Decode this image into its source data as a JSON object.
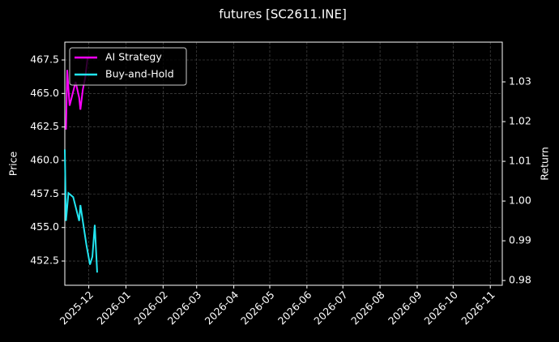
{
  "chart_data": {
    "type": "line",
    "title": "futures [SC2611.INE]",
    "ylabel": "Price",
    "y2label": "Return",
    "xlim": [
      "2025-11-11",
      "2026-11-11"
    ],
    "xticks": [
      {
        "value": "2025-12-01",
        "label": "2025-12"
      },
      {
        "value": "2026-01-01",
        "label": "2026-01"
      },
      {
        "value": "2026-02-01",
        "label": "2026-02"
      },
      {
        "value": "2026-03-01",
        "label": "2026-03"
      },
      {
        "value": "2026-04-01",
        "label": "2026-04"
      },
      {
        "value": "2026-05-01",
        "label": "2026-05"
      },
      {
        "value": "2026-06-01",
        "label": "2026-06"
      },
      {
        "value": "2026-07-01",
        "label": "2026-07"
      },
      {
        "value": "2026-08-01",
        "label": "2026-08"
      },
      {
        "value": "2026-09-01",
        "label": "2026-09"
      },
      {
        "value": "2026-10-01",
        "label": "2026-10"
      },
      {
        "value": "2026-11-01",
        "label": "2026-11"
      }
    ],
    "ylim": [
      450.69,
      468.83
    ],
    "yticks": [
      {
        "value": 452.5,
        "label": "452.5"
      },
      {
        "value": 455,
        "label": "455.0"
      },
      {
        "value": 457.5,
        "label": "457.5"
      },
      {
        "value": 460,
        "label": "460.0"
      },
      {
        "value": 462.5,
        "label": "462.5"
      },
      {
        "value": 465,
        "label": "465.0"
      },
      {
        "value": 467.5,
        "label": "467.5"
      }
    ],
    "y2lim": [
      0.9788,
      1.04
    ],
    "y2ticks": [
      {
        "value": 0.98,
        "label": "0.98"
      },
      {
        "value": 0.99,
        "label": "0.99"
      },
      {
        "value": 1,
        "label": "1.00"
      },
      {
        "value": 1.01,
        "label": "1.01"
      },
      {
        "value": 1.02,
        "label": "1.02"
      },
      {
        "value": 1.03,
        "label": "1.03"
      }
    ],
    "grid": true,
    "legend": "upper left",
    "series": [
      {
        "name": "AI Strategy",
        "color": "#ff00ff",
        "axis": "y2",
        "x": [
          "2025-11-12",
          "2025-11-13",
          "2025-11-15",
          "2025-11-20",
          "2025-11-23",
          "2025-11-24",
          "2025-11-26",
          "2025-11-28",
          "2025-11-30"
        ],
        "values": [
          1.018,
          1.033,
          1.024,
          1.03,
          1.026,
          1.023,
          1.028,
          1.031,
          1.036
        ]
      },
      {
        "name": "Buy-and-Hold",
        "color": "#22e5f0",
        "axis": "y2",
        "x": [
          "2025-11-11",
          "2025-11-12",
          "2025-11-14",
          "2025-11-18",
          "2025-11-23",
          "2025-11-24",
          "2025-11-26",
          "2025-11-29",
          "2025-12-02",
          "2025-12-04",
          "2025-12-06",
          "2025-12-08"
        ],
        "values": [
          1.013,
          0.995,
          1.002,
          1.001,
          0.995,
          0.999,
          0.995,
          0.989,
          0.984,
          0.986,
          0.994,
          0.982
        ]
      }
    ]
  }
}
